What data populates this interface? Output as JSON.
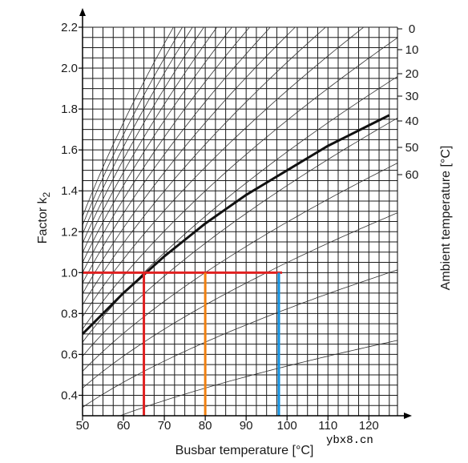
{
  "chart_data": {
    "type": "line",
    "xlabel": "Busbar temperature [°C]",
    "ylabel": "Factor k",
    "ylabel_subscript": "2",
    "right_label": "Ambient temperature [°C]",
    "xlim": [
      50,
      127
    ],
    "ylim": [
      0.3,
      2.2
    ],
    "x_ticks": [
      "50",
      "60",
      "70",
      "80",
      "90",
      "100",
      "110",
      "120"
    ],
    "y_ticks": [
      "0.4",
      "0.6",
      "0.8",
      "1.0",
      "1.2",
      "1.4",
      "1.6",
      "1.8",
      "2.0",
      "2.2"
    ],
    "ambient_labels": [
      "0",
      "10",
      "20",
      "30",
      "40",
      "50",
      "60"
    ],
    "grid": true,
    "series": [
      {
        "x": [
          50,
          55,
          60,
          65,
          70,
          75,
          80,
          85,
          90,
          95,
          100,
          105,
          110,
          115,
          120,
          125
        ],
        "y": [
          0.7,
          0.8,
          0.9,
          0.99,
          1.08,
          1.16,
          1.24,
          1.31,
          1.38,
          1.44,
          1.5,
          1.56,
          1.62,
          1.67,
          1.72,
          1.77
        ]
      }
    ],
    "markers": [
      {
        "y": 1.0,
        "x": 65,
        "color": "#e02020"
      },
      {
        "y": 1.0,
        "x": 80,
        "color": "#f08010"
      },
      {
        "y": 1.0,
        "x": 98,
        "color": "#1090e0"
      }
    ]
  },
  "watermark": "ybx8.cn",
  "colors": {
    "grid": "#1a1a1a",
    "curve": "#111111"
  }
}
